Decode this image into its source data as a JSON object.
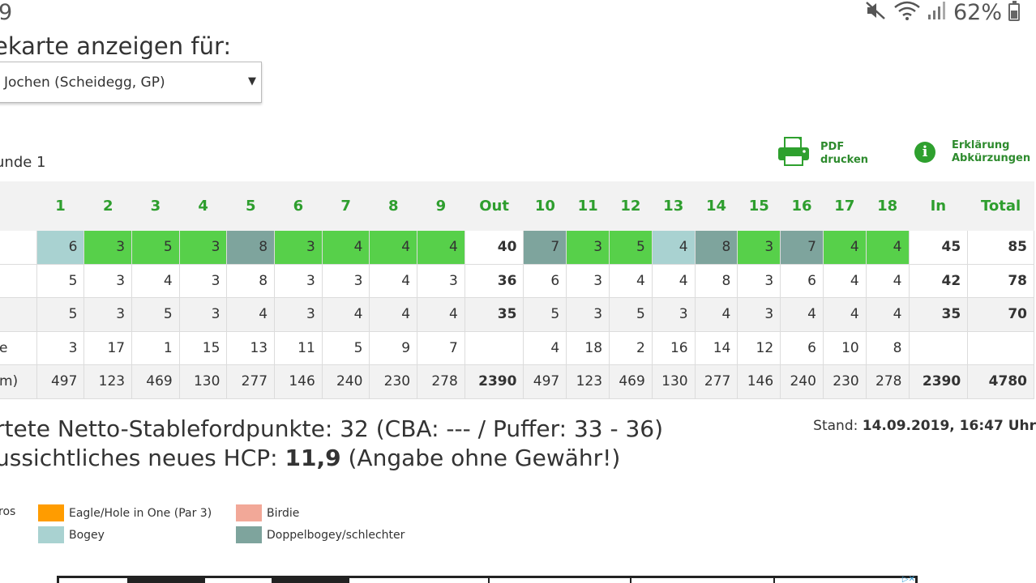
{
  "status_bar": {
    "time": "9",
    "battery": "62%"
  },
  "heading": "ekarte anzeigen für:",
  "player_select": {
    "value": "Jochen (Scheidegg, GP)"
  },
  "round_label": "unde 1",
  "tools": {
    "pdf_line1": "PDF",
    "pdf_line2": "drucken",
    "info_line1": "Erklärung",
    "info_line2": "Abkürzungen",
    "info_symbol": "i"
  },
  "table": {
    "headers": [
      "",
      "1",
      "2",
      "3",
      "4",
      "5",
      "6",
      "7",
      "8",
      "9",
      "Out",
      "10",
      "11",
      "12",
      "13",
      "14",
      "15",
      "16",
      "17",
      "18",
      "In",
      "Total"
    ],
    "rows": [
      {
        "label": "",
        "cells": [
          "6",
          "3",
          "5",
          "3",
          "8",
          "3",
          "4",
          "4",
          "4",
          "40",
          "7",
          "3",
          "5",
          "4",
          "8",
          "3",
          "7",
          "4",
          "4",
          "45",
          "85"
        ]
      },
      {
        "label": "",
        "cells": [
          "5",
          "3",
          "4",
          "3",
          "8",
          "3",
          "3",
          "4",
          "3",
          "36",
          "6",
          "3",
          "4",
          "4",
          "8",
          "3",
          "6",
          "4",
          "4",
          "42",
          "78"
        ]
      },
      {
        "label": "",
        "cells": [
          "5",
          "3",
          "5",
          "3",
          "4",
          "3",
          "4",
          "4",
          "4",
          "35",
          "5",
          "3",
          "5",
          "3",
          "4",
          "3",
          "4",
          "4",
          "4",
          "35",
          "70"
        ]
      },
      {
        "label": "e",
        "cells": [
          "3",
          "17",
          "1",
          "15",
          "13",
          "11",
          "5",
          "9",
          "7",
          "",
          "4",
          "18",
          "2",
          "16",
          "14",
          "12",
          "6",
          "10",
          "8",
          "",
          ""
        ]
      },
      {
        "label": "m)",
        "cells": [
          "497",
          "123",
          "469",
          "130",
          "277",
          "146",
          "240",
          "230",
          "278",
          "2390",
          "497",
          "123",
          "469",
          "130",
          "277",
          "146",
          "240",
          "230",
          "278",
          "2390",
          "4780"
        ]
      }
    ],
    "score_colors": [
      "bogey",
      "green",
      "green",
      "green",
      "dbl",
      "green",
      "green",
      "green",
      "green",
      "",
      "dbl",
      "green",
      "green",
      "bogey",
      "dbl",
      "green",
      "dbl",
      "green",
      "green",
      "",
      ""
    ]
  },
  "summary": {
    "line1": "rtete Netto-Stablefordpunkte: 32 (CBA: --- / Puffer: 33 - 36)",
    "line2_prefix": "ussichtliches neues HCP: ",
    "line2_bold": "11,9",
    "line2_suffix": " (Angabe ohne Gewähr!)",
    "stand_label": "Stand: ",
    "stand_value": "14.09.2019, 16:47 Uhr"
  },
  "legend": {
    "albatros": "ros",
    "eagle": "Eagle/Hole in One (Par 3)",
    "birdie": "Birdie",
    "bogey": "Bogey",
    "double": "Doppelbogey/schlechter"
  },
  "colors": {
    "accent_green": "#2e9e2e",
    "par": "#57d04a",
    "bogey": "#a9d2d1",
    "double_bogey": "#7ea49d",
    "eagle": "#ff9c00",
    "birdie": "#f2a898"
  }
}
